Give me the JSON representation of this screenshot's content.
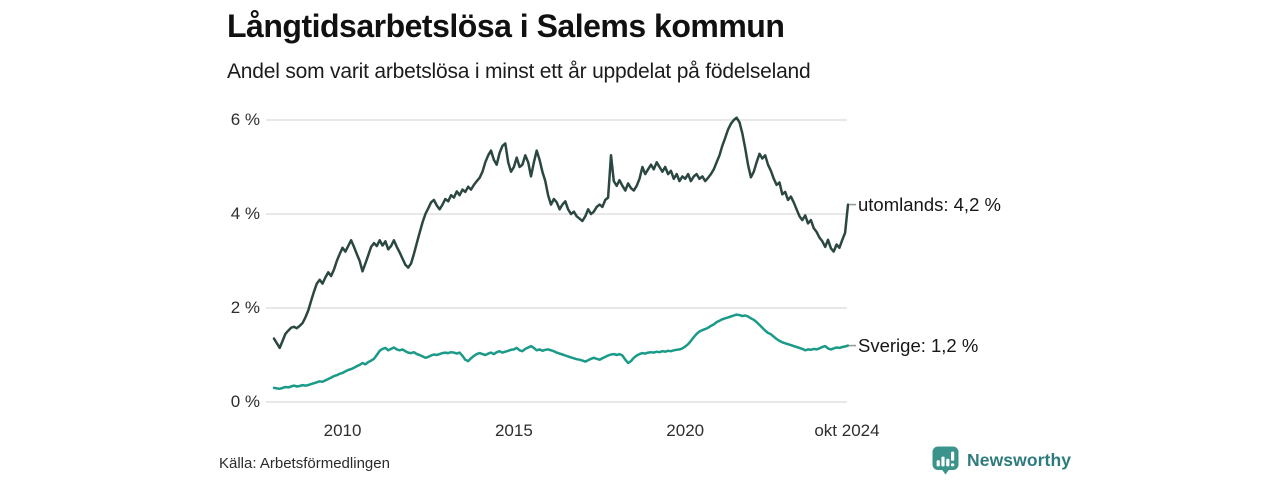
{
  "header": {
    "title": "Långtidsarbetslösa i Salems kommun",
    "subtitle": "Andel som varit arbetslösa i minst ett år uppdelat på födelseland"
  },
  "footer": {
    "source": "Källa: Arbetsförmedlingen",
    "brand": "Newsworthy"
  },
  "colors": {
    "background": "#ffffff",
    "grid": "#e0e0e0",
    "axis_text": "#2e2e2e",
    "label_text": "#161616",
    "end_tick": "#9a9a9a",
    "utomlands_line": "#2b4742",
    "sverige_line": "#1a9a89",
    "brand_teal": "#3a948b",
    "brand_text": "#2e7b7e"
  },
  "chart_data": {
    "type": "line",
    "title": "Långtidsarbetslösa i Salems kommun",
    "subtitle": "Andel som varit arbetslösa i minst ett år uppdelat på födelseland",
    "xlabel": "",
    "ylabel": "",
    "ylim": [
      0,
      6
    ],
    "x_range": [
      2008.0,
      2024.75
    ],
    "grid": true,
    "legend_position": "right-of-line-end",
    "y_ticks": [
      {
        "label": "0 %",
        "value": 0
      },
      {
        "label": "2 %",
        "value": 2
      },
      {
        "label": "4 %",
        "value": 4
      },
      {
        "label": "6 %",
        "value": 6
      }
    ],
    "x_ticks": [
      {
        "label": "2010",
        "t": 2010
      },
      {
        "label": "2015",
        "t": 2015
      },
      {
        "label": "2020",
        "t": 2020
      },
      {
        "label": "okt 2024",
        "t": 2024.72
      }
    ],
    "series": [
      {
        "name": "utomlands",
        "label": "utomlands: 4,2 %",
        "end_value": 4.2,
        "color": "#2b4742",
        "start_year": 2008.0,
        "step_months": 1,
        "values": [
          1.35,
          1.25,
          1.15,
          1.3,
          1.45,
          1.52,
          1.58,
          1.6,
          1.57,
          1.62,
          1.68,
          1.8,
          1.95,
          2.15,
          2.35,
          2.52,
          2.6,
          2.52,
          2.65,
          2.76,
          2.68,
          2.82,
          3.0,
          3.15,
          3.28,
          3.2,
          3.32,
          3.44,
          3.3,
          3.15,
          3.0,
          2.78,
          2.95,
          3.12,
          3.3,
          3.38,
          3.32,
          3.44,
          3.33,
          3.42,
          3.25,
          3.32,
          3.44,
          3.3,
          3.18,
          3.05,
          2.92,
          2.86,
          2.95,
          3.15,
          3.38,
          3.6,
          3.82,
          4.0,
          4.12,
          4.25,
          4.3,
          4.18,
          4.1,
          4.2,
          4.32,
          4.27,
          4.4,
          4.35,
          4.48,
          4.4,
          4.52,
          4.47,
          4.58,
          4.52,
          4.62,
          4.7,
          4.77,
          4.9,
          5.1,
          5.25,
          5.35,
          5.15,
          5.05,
          5.3,
          5.45,
          5.5,
          5.1,
          4.9,
          5.0,
          5.2,
          5.0,
          5.05,
          5.25,
          5.1,
          4.8,
          5.1,
          5.35,
          5.15,
          4.9,
          4.7,
          4.4,
          4.2,
          4.32,
          4.25,
          4.1,
          4.2,
          4.27,
          4.1,
          4.0,
          4.05,
          3.95,
          3.9,
          3.85,
          3.95,
          4.1,
          4.0,
          4.05,
          4.15,
          4.2,
          4.15,
          4.3,
          4.35,
          5.25,
          4.7,
          4.6,
          4.72,
          4.6,
          4.5,
          4.65,
          4.55,
          4.5,
          4.6,
          4.75,
          5.0,
          4.85,
          4.95,
          5.05,
          4.95,
          5.1,
          5.0,
          4.9,
          5.0,
          4.85,
          4.92,
          4.75,
          4.85,
          4.7,
          4.8,
          4.75,
          4.85,
          4.7,
          4.8,
          4.85,
          4.75,
          4.8,
          4.7,
          4.77,
          4.85,
          4.95,
          5.1,
          5.25,
          5.45,
          5.62,
          5.8,
          5.92,
          6.0,
          6.05,
          5.95,
          5.72,
          5.4,
          5.05,
          4.78,
          4.9,
          5.1,
          5.28,
          5.18,
          5.25,
          5.05,
          4.92,
          4.75,
          4.62,
          4.67,
          4.42,
          4.47,
          4.3,
          4.37,
          4.25,
          4.1,
          3.95,
          3.87,
          3.97,
          3.8,
          3.87,
          3.7,
          3.62,
          3.5,
          3.42,
          3.3,
          3.45,
          3.27,
          3.2,
          3.35,
          3.28,
          3.45,
          3.6,
          4.2
        ]
      },
      {
        "name": "Sverige",
        "label": "Sverige: 1,2 %",
        "end_value": 1.2,
        "color": "#1a9a89",
        "start_year": 2008.0,
        "step_months": 1,
        "values": [
          0.3,
          0.29,
          0.28,
          0.3,
          0.32,
          0.31,
          0.33,
          0.35,
          0.33,
          0.34,
          0.36,
          0.35,
          0.36,
          0.38,
          0.4,
          0.42,
          0.44,
          0.43,
          0.46,
          0.49,
          0.52,
          0.55,
          0.57,
          0.6,
          0.62,
          0.65,
          0.68,
          0.7,
          0.73,
          0.76,
          0.79,
          0.83,
          0.8,
          0.85,
          0.88,
          0.92,
          1.0,
          1.09,
          1.13,
          1.15,
          1.1,
          1.13,
          1.16,
          1.12,
          1.1,
          1.12,
          1.08,
          1.05,
          1.04,
          1.06,
          1.02,
          1.0,
          0.97,
          0.94,
          0.96,
          0.99,
          1.01,
          1.0,
          1.02,
          1.04,
          1.05,
          1.04,
          1.06,
          1.05,
          1.03,
          1.05,
          0.98,
          0.9,
          0.87,
          0.93,
          0.98,
          1.02,
          1.04,
          1.02,
          1.0,
          1.03,
          1.05,
          1.02,
          1.06,
          1.08,
          1.05,
          1.07,
          1.09,
          1.11,
          1.12,
          1.15,
          1.1,
          1.08,
          1.13,
          1.16,
          1.19,
          1.15,
          1.1,
          1.12,
          1.09,
          1.11,
          1.12,
          1.1,
          1.08,
          1.05,
          1.03,
          1.01,
          0.99,
          0.97,
          0.95,
          0.93,
          0.91,
          0.9,
          0.88,
          0.86,
          0.89,
          0.92,
          0.94,
          0.92,
          0.9,
          0.93,
          0.96,
          0.99,
          1.01,
          1.02,
          1.0,
          1.02,
          0.99,
          0.9,
          0.83,
          0.87,
          0.94,
          0.99,
          1.02,
          1.04,
          1.03,
          1.05,
          1.06,
          1.05,
          1.07,
          1.06,
          1.08,
          1.07,
          1.09,
          1.08,
          1.1,
          1.11,
          1.12,
          1.14,
          1.18,
          1.23,
          1.3,
          1.38,
          1.45,
          1.5,
          1.53,
          1.55,
          1.58,
          1.62,
          1.65,
          1.7,
          1.73,
          1.76,
          1.78,
          1.8,
          1.82,
          1.84,
          1.86,
          1.85,
          1.83,
          1.84,
          1.82,
          1.78,
          1.75,
          1.7,
          1.64,
          1.58,
          1.52,
          1.47,
          1.44,
          1.39,
          1.34,
          1.3,
          1.27,
          1.25,
          1.23,
          1.21,
          1.19,
          1.17,
          1.15,
          1.13,
          1.1,
          1.12,
          1.11,
          1.13,
          1.12,
          1.14,
          1.17,
          1.19,
          1.14,
          1.12,
          1.14,
          1.16,
          1.15,
          1.17,
          1.18,
          1.2
        ]
      }
    ]
  }
}
